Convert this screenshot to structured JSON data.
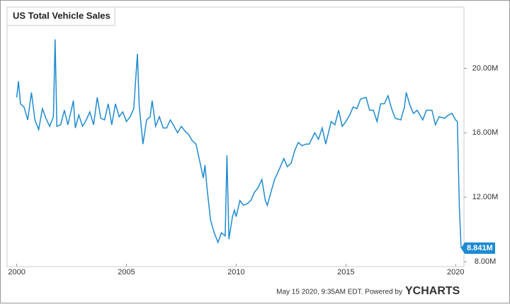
{
  "chart_data": {
    "type": "line",
    "title": "US Total Vehicle Sales",
    "color": "#1f8bd0",
    "x": [
      2000.0,
      2000.08,
      2000.17,
      2000.33,
      2000.5,
      2000.67,
      2000.83,
      2001.0,
      2001.17,
      2001.33,
      2001.5,
      2001.67,
      2001.75,
      2001.83,
      2002.0,
      2002.17,
      2002.33,
      2002.5,
      2002.58,
      2002.67,
      2002.83,
      2003.0,
      2003.17,
      2003.33,
      2003.5,
      2003.67,
      2003.83,
      2004.0,
      2004.17,
      2004.33,
      2004.5,
      2004.67,
      2004.83,
      2005.0,
      2005.17,
      2005.33,
      2005.5,
      2005.58,
      2005.75,
      2005.92,
      2006.08,
      2006.17,
      2006.33,
      2006.5,
      2006.67,
      2006.83,
      2007.0,
      2007.17,
      2007.33,
      2007.5,
      2007.67,
      2007.83,
      2008.0,
      2008.17,
      2008.33,
      2008.5,
      2008.58,
      2008.67,
      2008.83,
      2009.0,
      2009.17,
      2009.33,
      2009.5,
      2009.58,
      2009.67,
      2009.83,
      2009.92,
      2010.0,
      2010.17,
      2010.33,
      2010.5,
      2010.67,
      2010.83,
      2011.0,
      2011.17,
      2011.33,
      2011.42,
      2011.58,
      2011.75,
      2011.92,
      2012.17,
      2012.33,
      2012.5,
      2012.67,
      2012.83,
      2013.0,
      2013.17,
      2013.33,
      2013.58,
      2013.75,
      2013.92,
      2014.08,
      2014.33,
      2014.5,
      2014.67,
      2014.83,
      2015.0,
      2015.17,
      2015.33,
      2015.5,
      2015.67,
      2015.92,
      2016.08,
      2016.25,
      2016.42,
      2016.58,
      2016.75,
      2016.92,
      2017.08,
      2017.25,
      2017.5,
      2017.67,
      2017.75,
      2017.92,
      2018.08,
      2018.25,
      2018.5,
      2018.67,
      2018.92,
      2019.08,
      2019.25,
      2019.5,
      2019.67,
      2019.83,
      2020.0,
      2020.08,
      2020.17,
      2020.25
    ],
    "values": [
      18.2,
      19.2,
      17.8,
      17.6,
      16.8,
      18.5,
      16.8,
      16.2,
      17.5,
      16.9,
      16.4,
      17.0,
      21.8,
      16.4,
      16.5,
      17.4,
      16.5,
      17.5,
      18.0,
      16.3,
      17.1,
      16.4,
      16.8,
      17.3,
      16.5,
      18.2,
      16.9,
      16.8,
      17.8,
      16.5,
      17.8,
      17.0,
      17.3,
      16.7,
      17.0,
      17.5,
      20.9,
      17.7,
      15.3,
      16.8,
      17.0,
      18.0,
      16.4,
      17.0,
      16.3,
      16.3,
      16.8,
      16.4,
      16.0,
      16.4,
      16.1,
      15.9,
      15.5,
      15.3,
      14.3,
      13.2,
      14.0,
      12.6,
      10.6,
      9.8,
      9.2,
      9.8,
      9.6,
      14.6,
      9.4,
      10.8,
      11.2,
      10.8,
      11.8,
      11.5,
      11.6,
      11.8,
      12.3,
      12.6,
      13.1,
      11.8,
      11.5,
      12.3,
      13.1,
      13.6,
      14.4,
      13.9,
      14.1,
      14.9,
      15.4,
      15.2,
      15.3,
      15.3,
      16.0,
      15.6,
      16.3,
      15.3,
      16.7,
      16.5,
      17.4,
      16.4,
      16.7,
      17.1,
      17.6,
      17.5,
      18.1,
      18.2,
      17.4,
      17.4,
      16.7,
      17.8,
      17.8,
      18.3,
      17.5,
      16.9,
      16.8,
      17.6,
      18.5,
      17.7,
      17.2,
      17.4,
      16.8,
      17.4,
      17.4,
      16.5,
      17.0,
      16.9,
      17.1,
      17.2,
      16.8,
      16.7,
      11.4,
      8.841
    ],
    "last_value_label": "8.841M",
    "xlim": [
      1999.56,
      2020.38
    ],
    "xticks": [
      2000,
      2005,
      2010,
      2015,
      2020
    ],
    "ylim": [
      7.7,
      23.8
    ],
    "yticks": [
      {
        "value": 8,
        "label": "8.00M"
      },
      {
        "value": 12,
        "label": "12.00M"
      },
      {
        "value": 16,
        "label": "16.00M"
      },
      {
        "value": 20,
        "label": "20.00M"
      }
    ],
    "footer": "May 15 2020, 9:35AM EDT.  Powered by",
    "brand": "YCHARTS"
  }
}
